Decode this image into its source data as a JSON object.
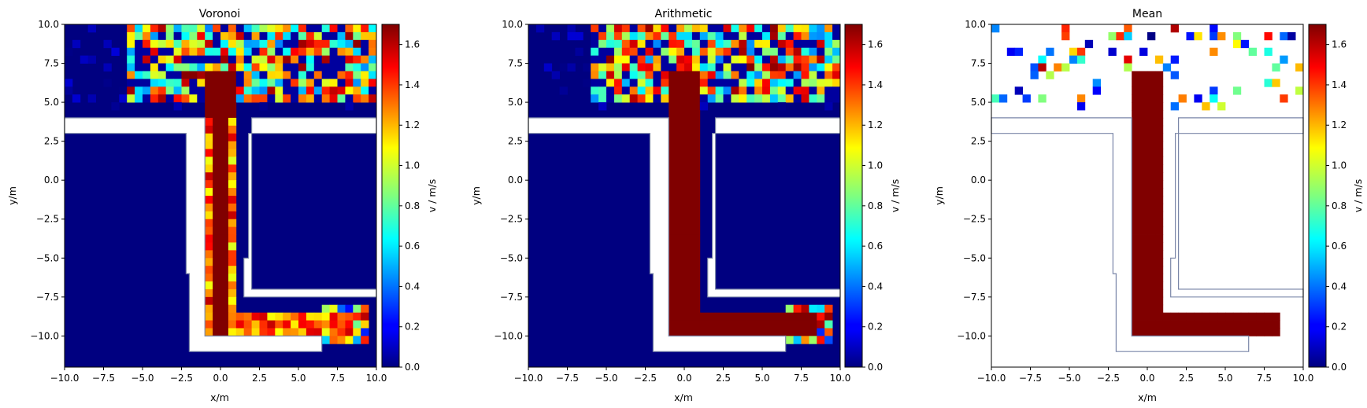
{
  "chart_data": {
    "type": "heatmap",
    "colormap": "jet",
    "panels": [
      {
        "title": "Voronoi",
        "xlabel": "x/m",
        "ylabel": "y/m",
        "colorbar_label": "v / m/s",
        "empty_cells": "background-low"
      },
      {
        "title": "Arithmetic",
        "xlabel": "x/m",
        "ylabel": "y/m",
        "colorbar_label": "v / m/s",
        "empty_cells": "background-low"
      },
      {
        "title": "Mean",
        "xlabel": "x/m",
        "ylabel": "y/m",
        "colorbar_label": "v / m/s",
        "empty_cells": "white"
      }
    ],
    "xlim": [
      -10,
      10
    ],
    "ylim": [
      -12,
      10
    ],
    "x_ticks": [
      "−10.0",
      "−7.5",
      "−5.0",
      "−2.5",
      "0.0",
      "2.5",
      "5.0",
      "7.5",
      "10.0"
    ],
    "x_tick_values": [
      -10,
      -7.5,
      -5,
      -2.5,
      0,
      2.5,
      5,
      7.5,
      10
    ],
    "y_ticks": [
      "10.0",
      "7.5",
      "5.0",
      "2.5",
      "0.0",
      "−2.5",
      "−5.0",
      "−7.5",
      "−10.0"
    ],
    "y_tick_values": [
      10,
      7.5,
      5,
      2.5,
      0,
      -2.5,
      -5,
      -7.5,
      -10
    ],
    "colorbar_ticks": [
      "0.0",
      "0.2",
      "0.4",
      "0.6",
      "0.8",
      "1.0",
      "1.2",
      "1.4",
      "1.6"
    ],
    "colorbar_tick_values": [
      0,
      0.2,
      0.4,
      0.6,
      0.8,
      1.0,
      1.2,
      1.4,
      1.6
    ],
    "vlim": [
      0,
      1.7
    ],
    "grid": false,
    "geometry": {
      "walkable_outline": [
        [
          -10,
          4
        ],
        [
          -1,
          4
        ],
        [
          -1,
          -10
        ],
        [
          6.5,
          -10
        ],
        [
          6.5,
          -11
        ],
        [
          -2,
          -11
        ],
        [
          -2,
          -6
        ],
        [
          -2.2,
          -6
        ],
        [
          -2.2,
          3
        ],
        [
          -10,
          3
        ]
      ],
      "right_outline": [
        [
          10,
          4
        ],
        [
          2,
          4
        ],
        [
          2,
          -7
        ],
        [
          10,
          -7
        ],
        [
          10,
          -7.5
        ],
        [
          1.5,
          -7.5
        ],
        [
          1.5,
          -5
        ],
        [
          1.8,
          -5
        ],
        [
          1.8,
          3
        ],
        [
          10,
          3
        ]
      ]
    },
    "high_speed_path_description": "vertical corridor x≈-1..1 from y≈7 to -8, then horizontal corridor y≈-8.5..-10 to x≈9"
  }
}
